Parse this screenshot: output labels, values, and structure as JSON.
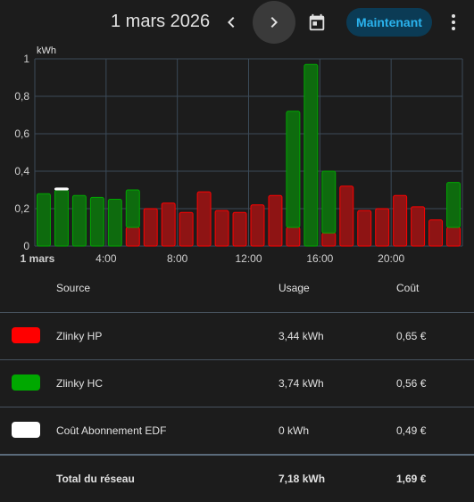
{
  "header": {
    "date": "1 mars 2026",
    "now_label": "Maintenant"
  },
  "icons": [
    "chevron-left-icon",
    "chevron-right-icon",
    "calendar-icon",
    "more-vertical-icon"
  ],
  "colors": {
    "hp": "#ff0000",
    "hc": "#00a800",
    "abonnement": "#ffffff",
    "accent": "#2ab3ee"
  },
  "chart_data": {
    "type": "bar",
    "stacked": true,
    "ylabel": "kWh",
    "ylim": [
      0,
      1
    ],
    "yticks": [
      "0",
      "0,2",
      "0,4",
      "0,6",
      "0,8",
      "1"
    ],
    "xtick_labels": [
      "1 mars",
      "4:00",
      "8:00",
      "12:00",
      "16:00",
      "20:00"
    ],
    "categories": [
      "0:00",
      "1:00",
      "2:00",
      "3:00",
      "4:00",
      "5:00",
      "6:00",
      "7:00",
      "8:00",
      "9:00",
      "10:00",
      "11:00",
      "12:00",
      "13:00",
      "14:00",
      "15:00",
      "16:00",
      "17:00",
      "18:00",
      "19:00",
      "20:00",
      "21:00",
      "22:00",
      "23:00"
    ],
    "series": [
      {
        "name": "Zlinky HP",
        "values": [
          0,
          0,
          0,
          0,
          0,
          0.1,
          0.2,
          0.23,
          0.18,
          0.29,
          0.19,
          0.18,
          0.22,
          0.27,
          0.1,
          0,
          0.07,
          0.32,
          0.19,
          0.2,
          0.27,
          0.21,
          0.14,
          0.1
        ]
      },
      {
        "name": "Zlinky HC",
        "values": [
          0.28,
          0.3,
          0.27,
          0.26,
          0.25,
          0.2,
          0,
          0,
          0,
          0,
          0,
          0,
          0,
          0,
          0.62,
          0.97,
          0.33,
          0,
          0,
          0,
          0,
          0,
          0,
          0.24
        ]
      },
      {
        "name": "Coût Abonnement EDF",
        "values": [
          0,
          0.01,
          0,
          0,
          0,
          0,
          0,
          0,
          0,
          0,
          0,
          0,
          0,
          0,
          0,
          0,
          0,
          0,
          0,
          0,
          0,
          0,
          0,
          0
        ]
      }
    ],
    "grid": true
  },
  "table": {
    "headers": {
      "source": "Source",
      "usage": "Usage",
      "cost": "Coût"
    },
    "rows": [
      {
        "source": "Zlinky HP",
        "usage": "3,44 kWh",
        "cost": "0,65 €",
        "color": "#ff0000"
      },
      {
        "source": "Zlinky HC",
        "usage": "3,74 kWh",
        "cost": "0,56 €",
        "color": "#00a800"
      },
      {
        "source": "Coût Abonnement EDF",
        "usage": "0 kWh",
        "cost": "0,49 €",
        "color": "#ffffff"
      }
    ],
    "total": {
      "source": "Total du réseau",
      "usage": "7,18 kWh",
      "cost": "1,69 €"
    }
  }
}
